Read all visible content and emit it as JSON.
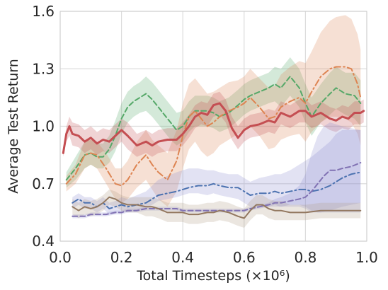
{
  "chart_data": {
    "type": "line",
    "xlabel": "Total Timesteps (×10⁶)",
    "ylabel": "Average Test Return",
    "xlim": [
      0.0,
      1.0
    ],
    "ylim": [
      0.4,
      1.6
    ],
    "xticks": [
      "0.0",
      "0.2",
      "0.4",
      "0.6",
      "0.8",
      "1.0"
    ],
    "yticks": [
      "0.4",
      "0.7",
      "1.0",
      "1.3",
      "1.6"
    ],
    "xtick_values": [
      0.0,
      0.2,
      0.4,
      0.6,
      0.8,
      1.0
    ],
    "ytick_values": [
      0.4,
      0.7,
      1.0,
      1.3,
      1.6
    ],
    "grid": true,
    "series": [
      {
        "color": "#55a868",
        "linestyle": "dashed",
        "band_color": "#55a868",
        "x": [
          0.02,
          0.05,
          0.08,
          0.1,
          0.12,
          0.14,
          0.16,
          0.18,
          0.2,
          0.22,
          0.24,
          0.26,
          0.28,
          0.3,
          0.32,
          0.34,
          0.36,
          0.38,
          0.4,
          0.42,
          0.44,
          0.46,
          0.48,
          0.5,
          0.52,
          0.55,
          0.58,
          0.6,
          0.62,
          0.65,
          0.68,
          0.7,
          0.72,
          0.75,
          0.78,
          0.8,
          0.82,
          0.85,
          0.88,
          0.9,
          0.93,
          0.96,
          0.98
        ],
        "y": [
          0.72,
          0.78,
          0.85,
          0.86,
          0.84,
          0.84,
          0.88,
          0.95,
          1.04,
          1.1,
          1.13,
          1.15,
          1.17,
          1.14,
          1.1,
          1.06,
          1.02,
          0.98,
          1.0,
          1.05,
          1.08,
          1.08,
          1.08,
          1.07,
          1.05,
          1.07,
          1.11,
          1.14,
          1.16,
          1.18,
          1.2,
          1.22,
          1.2,
          1.26,
          1.2,
          1.12,
          1.05,
          1.12,
          1.17,
          1.2,
          1.17,
          1.16,
          1.12
        ],
        "lo": [
          0.68,
          0.72,
          0.78,
          0.8,
          0.78,
          0.78,
          0.81,
          0.87,
          0.96,
          1.02,
          1.05,
          1.07,
          1.08,
          1.05,
          1.01,
          0.97,
          0.93,
          0.9,
          0.92,
          0.97,
          1.0,
          1.0,
          1.0,
          0.99,
          0.97,
          0.99,
          1.03,
          1.06,
          1.08,
          1.1,
          1.12,
          1.13,
          1.1,
          1.16,
          1.1,
          1.02,
          0.95,
          1.02,
          1.06,
          1.09,
          1.06,
          1.04,
          1.0
        ],
        "hi": [
          0.76,
          0.84,
          0.92,
          0.93,
          0.91,
          0.91,
          0.95,
          1.03,
          1.12,
          1.18,
          1.21,
          1.23,
          1.26,
          1.23,
          1.19,
          1.15,
          1.11,
          1.07,
          1.08,
          1.13,
          1.16,
          1.16,
          1.16,
          1.15,
          1.13,
          1.15,
          1.19,
          1.22,
          1.24,
          1.26,
          1.28,
          1.31,
          1.3,
          1.36,
          1.3,
          1.22,
          1.15,
          1.22,
          1.28,
          1.31,
          1.28,
          1.28,
          1.24
        ]
      },
      {
        "color": "#dd8452",
        "linestyle": "dashdot",
        "band_color": "#dd8452",
        "x": [
          0.02,
          0.05,
          0.08,
          0.1,
          0.12,
          0.15,
          0.18,
          0.2,
          0.22,
          0.25,
          0.28,
          0.3,
          0.32,
          0.35,
          0.38,
          0.4,
          0.42,
          0.44,
          0.46,
          0.48,
          0.5,
          0.52,
          0.55,
          0.58,
          0.6,
          0.62,
          0.65,
          0.68,
          0.7,
          0.72,
          0.75,
          0.78,
          0.8,
          0.82,
          0.85,
          0.88,
          0.9,
          0.93,
          0.95,
          0.97,
          0.98
        ],
        "y": [
          0.7,
          0.75,
          0.85,
          0.86,
          0.85,
          0.78,
          0.7,
          0.69,
          0.72,
          0.8,
          0.85,
          0.8,
          0.76,
          0.72,
          0.82,
          0.95,
          1.05,
          1.08,
          1.04,
          1.0,
          1.02,
          1.05,
          1.08,
          1.1,
          1.12,
          1.15,
          1.1,
          1.04,
          1.05,
          1.1,
          1.13,
          1.15,
          1.12,
          1.18,
          1.26,
          1.3,
          1.31,
          1.31,
          1.3,
          1.22,
          1.15
        ],
        "lo": [
          0.66,
          0.7,
          0.78,
          0.8,
          0.78,
          0.7,
          0.62,
          0.6,
          0.62,
          0.68,
          0.72,
          0.67,
          0.62,
          0.58,
          0.66,
          0.78,
          0.88,
          0.92,
          0.87,
          0.84,
          0.86,
          0.9,
          0.93,
          0.96,
          0.98,
          1.0,
          0.95,
          0.88,
          0.89,
          0.93,
          0.95,
          0.96,
          0.92,
          0.97,
          1.02,
          1.05,
          1.05,
          1.04,
          1.02,
          0.96,
          0.9
        ],
        "hi": [
          0.74,
          0.8,
          0.92,
          0.93,
          0.92,
          0.86,
          0.78,
          0.78,
          0.82,
          0.92,
          0.98,
          0.93,
          0.9,
          0.86,
          0.98,
          1.12,
          1.22,
          1.25,
          1.21,
          1.17,
          1.18,
          1.2,
          1.23,
          1.24,
          1.26,
          1.3,
          1.25,
          1.2,
          1.21,
          1.27,
          1.31,
          1.34,
          1.33,
          1.39,
          1.49,
          1.55,
          1.57,
          1.58,
          1.56,
          1.48,
          1.4
        ]
      },
      {
        "color": "#c44e52",
        "linestyle": "solid",
        "band_color": "#c44e52",
        "linewidth": 3,
        "x": [
          0.01,
          0.02,
          0.03,
          0.04,
          0.06,
          0.08,
          0.1,
          0.12,
          0.14,
          0.16,
          0.18,
          0.2,
          0.22,
          0.25,
          0.28,
          0.3,
          0.32,
          0.35,
          0.38,
          0.4,
          0.42,
          0.44,
          0.46,
          0.48,
          0.5,
          0.52,
          0.54,
          0.56,
          0.58,
          0.6,
          0.62,
          0.65,
          0.68,
          0.7,
          0.72,
          0.75,
          0.78,
          0.8,
          0.82,
          0.85,
          0.88,
          0.9,
          0.92,
          0.94,
          0.96,
          0.98,
          0.99
        ],
        "y": [
          0.86,
          0.96,
          1.0,
          0.96,
          0.95,
          0.92,
          0.94,
          0.91,
          0.93,
          0.92,
          0.95,
          0.98,
          0.95,
          0.9,
          0.92,
          0.9,
          0.92,
          0.93,
          0.93,
          0.96,
          1.0,
          1.05,
          1.07,
          1.06,
          1.11,
          1.12,
          1.08,
          0.99,
          0.94,
          0.98,
          1.0,
          1.01,
          1.03,
          1.02,
          1.07,
          1.05,
          1.08,
          1.08,
          1.05,
          1.07,
          1.04,
          1.03,
          1.05,
          1.04,
          1.07,
          1.07,
          1.08
        ],
        "lo": [
          0.84,
          0.92,
          0.95,
          0.9,
          0.89,
          0.86,
          0.88,
          0.85,
          0.87,
          0.86,
          0.89,
          0.92,
          0.88,
          0.84,
          0.86,
          0.84,
          0.86,
          0.87,
          0.87,
          0.9,
          0.94,
          0.99,
          1.01,
          1.0,
          1.05,
          1.06,
          1.02,
          0.93,
          0.88,
          0.92,
          0.94,
          0.95,
          0.97,
          0.96,
          1.01,
          0.99,
          1.02,
          1.02,
          0.99,
          1.01,
          0.98,
          0.97,
          0.99,
          0.98,
          1.01,
          1.01,
          1.02
        ],
        "hi": [
          0.88,
          1.0,
          1.05,
          1.02,
          1.01,
          0.98,
          1.0,
          0.97,
          0.99,
          0.98,
          1.01,
          1.04,
          1.02,
          0.96,
          0.98,
          0.96,
          0.98,
          0.99,
          0.99,
          1.02,
          1.06,
          1.11,
          1.13,
          1.12,
          1.17,
          1.18,
          1.14,
          1.05,
          1.0,
          1.04,
          1.06,
          1.07,
          1.09,
          1.08,
          1.13,
          1.11,
          1.14,
          1.14,
          1.11,
          1.13,
          1.1,
          1.09,
          1.11,
          1.1,
          1.13,
          1.13,
          1.14
        ]
      },
      {
        "color": "#4c72b0",
        "linestyle": "dashdot",
        "band_color": "#8c8cd0",
        "x": [
          0.04,
          0.06,
          0.08,
          0.1,
          0.12,
          0.14,
          0.16,
          0.18,
          0.2,
          0.22,
          0.25,
          0.28,
          0.3,
          0.32,
          0.35,
          0.38,
          0.4,
          0.42,
          0.45,
          0.48,
          0.5,
          0.52,
          0.55,
          0.58,
          0.6,
          0.62,
          0.65,
          0.68,
          0.7,
          0.72,
          0.75,
          0.78,
          0.8,
          0.82,
          0.85,
          0.88,
          0.9,
          0.92,
          0.95,
          0.98
        ],
        "y": [
          0.6,
          0.62,
          0.6,
          0.6,
          0.58,
          0.6,
          0.57,
          0.58,
          0.59,
          0.58,
          0.59,
          0.6,
          0.62,
          0.64,
          0.65,
          0.66,
          0.67,
          0.68,
          0.69,
          0.69,
          0.7,
          0.69,
          0.68,
          0.68,
          0.66,
          0.64,
          0.65,
          0.65,
          0.66,
          0.65,
          0.66,
          0.67,
          0.67,
          0.66,
          0.67,
          0.69,
          0.71,
          0.73,
          0.75,
          0.76
        ],
        "lo": [
          0.57,
          0.59,
          0.57,
          0.57,
          0.55,
          0.57,
          0.54,
          0.55,
          0.56,
          0.55,
          0.56,
          0.57,
          0.59,
          0.61,
          0.62,
          0.63,
          0.64,
          0.65,
          0.65,
          0.64,
          0.65,
          0.64,
          0.63,
          0.62,
          0.6,
          0.58,
          0.58,
          0.58,
          0.59,
          0.58,
          0.58,
          0.58,
          0.57,
          0.55,
          0.55,
          0.56,
          0.57,
          0.58,
          0.59,
          0.6
        ],
        "hi": [
          0.63,
          0.65,
          0.63,
          0.63,
          0.61,
          0.63,
          0.6,
          0.61,
          0.63,
          0.62,
          0.64,
          0.66,
          0.69,
          0.72,
          0.74,
          0.76,
          0.77,
          0.78,
          0.78,
          0.77,
          0.77,
          0.76,
          0.75,
          0.75,
          0.73,
          0.71,
          0.73,
          0.74,
          0.75,
          0.75,
          0.77,
          0.8,
          0.82,
          0.84,
          0.88,
          0.92,
          0.96,
          0.98,
          0.98,
          0.98
        ]
      },
      {
        "color": "#8172b3",
        "linestyle": "dashed",
        "band_color": "#8c8cd0",
        "x": [
          0.04,
          0.06,
          0.08,
          0.1,
          0.12,
          0.15,
          0.18,
          0.2,
          0.22,
          0.25,
          0.28,
          0.3,
          0.32,
          0.35,
          0.38,
          0.4,
          0.42,
          0.45,
          0.48,
          0.5,
          0.52,
          0.55,
          0.58,
          0.6,
          0.62,
          0.65,
          0.68,
          0.7,
          0.72,
          0.75,
          0.78,
          0.8,
          0.82,
          0.84,
          0.86,
          0.88,
          0.9,
          0.92,
          0.95,
          0.98
        ],
        "y": [
          0.53,
          0.53,
          0.53,
          0.54,
          0.54,
          0.54,
          0.55,
          0.55,
          0.56,
          0.56,
          0.57,
          0.57,
          0.57,
          0.57,
          0.57,
          0.56,
          0.56,
          0.56,
          0.56,
          0.56,
          0.56,
          0.56,
          0.56,
          0.56,
          0.57,
          0.58,
          0.59,
          0.6,
          0.6,
          0.61,
          0.62,
          0.63,
          0.66,
          0.7,
          0.74,
          0.77,
          0.77,
          0.78,
          0.79,
          0.81
        ],
        "lo": [
          0.52,
          0.52,
          0.52,
          0.53,
          0.53,
          0.53,
          0.54,
          0.54,
          0.55,
          0.55,
          0.56,
          0.56,
          0.56,
          0.56,
          0.56,
          0.55,
          0.55,
          0.55,
          0.55,
          0.55,
          0.55,
          0.55,
          0.55,
          0.55,
          0.56,
          0.57,
          0.58,
          0.58,
          0.58,
          0.59,
          0.59,
          0.58,
          0.56,
          0.55,
          0.55,
          0.55,
          0.55,
          0.55,
          0.55,
          0.55
        ],
        "hi": [
          0.54,
          0.54,
          0.54,
          0.55,
          0.55,
          0.55,
          0.56,
          0.56,
          0.57,
          0.57,
          0.58,
          0.58,
          0.58,
          0.58,
          0.58,
          0.57,
          0.57,
          0.57,
          0.57,
          0.57,
          0.57,
          0.57,
          0.57,
          0.57,
          0.58,
          0.59,
          0.6,
          0.62,
          0.63,
          0.65,
          0.69,
          0.75,
          0.86,
          0.95,
          1.0,
          1.02,
          1.01,
          1.0,
          0.99,
          0.98
        ]
      },
      {
        "color": "#937860",
        "linestyle": "solid",
        "band_color": "#b09a85",
        "x": [
          0.04,
          0.06,
          0.08,
          0.1,
          0.12,
          0.14,
          0.16,
          0.18,
          0.2,
          0.22,
          0.25,
          0.28,
          0.3,
          0.32,
          0.35,
          0.38,
          0.4,
          0.42,
          0.45,
          0.48,
          0.5,
          0.52,
          0.55,
          0.58,
          0.6,
          0.62,
          0.64,
          0.66,
          0.68,
          0.7,
          0.72,
          0.75,
          0.78,
          0.8,
          0.85,
          0.9,
          0.95,
          0.98
        ],
        "y": [
          0.58,
          0.56,
          0.58,
          0.57,
          0.58,
          0.6,
          0.63,
          0.62,
          0.6,
          0.59,
          0.59,
          0.58,
          0.58,
          0.57,
          0.55,
          0.55,
          0.55,
          0.54,
          0.54,
          0.55,
          0.55,
          0.56,
          0.55,
          0.53,
          0.52,
          0.56,
          0.59,
          0.59,
          0.57,
          0.56,
          0.56,
          0.55,
          0.55,
          0.55,
          0.56,
          0.56,
          0.56,
          0.56
        ],
        "lo": [
          0.54,
          0.52,
          0.54,
          0.53,
          0.54,
          0.56,
          0.59,
          0.58,
          0.56,
          0.55,
          0.55,
          0.53,
          0.53,
          0.52,
          0.5,
          0.5,
          0.5,
          0.49,
          0.49,
          0.5,
          0.5,
          0.51,
          0.5,
          0.48,
          0.47,
          0.51,
          0.54,
          0.54,
          0.52,
          0.51,
          0.51,
          0.51,
          0.51,
          0.51,
          0.52,
          0.52,
          0.52,
          0.52
        ],
        "hi": [
          0.62,
          0.6,
          0.62,
          0.61,
          0.62,
          0.64,
          0.67,
          0.66,
          0.64,
          0.63,
          0.63,
          0.63,
          0.63,
          0.62,
          0.6,
          0.6,
          0.6,
          0.59,
          0.59,
          0.6,
          0.6,
          0.61,
          0.6,
          0.58,
          0.57,
          0.61,
          0.64,
          0.64,
          0.62,
          0.61,
          0.61,
          0.59,
          0.59,
          0.59,
          0.6,
          0.6,
          0.6,
          0.6
        ]
      }
    ]
  }
}
